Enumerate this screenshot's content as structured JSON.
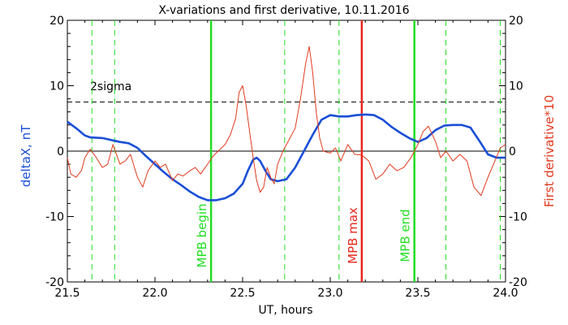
{
  "chart_data": {
    "type": "line",
    "title": "X-variations and first derivative, 10.11.2016",
    "xlabel": "UT, hours",
    "ylabel_left": "deltaX, nT",
    "ylabel_right": "First derivative*10",
    "xlim": [
      21.5,
      24.0
    ],
    "ylim": [
      -20,
      20
    ],
    "x_ticks": [
      "21.5",
      "22.0",
      "22.5",
      "23.0",
      "23.5",
      "24.0"
    ],
    "y_ticks": [
      "20",
      "10",
      "0",
      "-10",
      "-20"
    ],
    "zero_line": 0,
    "sigma_line": {
      "label": "2sigma",
      "value": 7.5
    },
    "colors": {
      "deltaX": "#1a4fd6",
      "derivative": "#e03a1e",
      "markers": "#22dd22",
      "max_marker": "#e8261c"
    },
    "dashed_markers_x": [
      21.64,
      21.77,
      22.74,
      23.05,
      23.66,
      23.97
    ],
    "events": [
      {
        "label": "MPB begin",
        "x": 22.32,
        "color": "#22dd22"
      },
      {
        "label": "MPB max",
        "x": 23.18,
        "color": "#e8261c"
      },
      {
        "label": "MPB end",
        "x": 23.48,
        "color": "#22dd22"
      }
    ],
    "series": [
      {
        "name": "deltaX, nT",
        "x": [
          21.5,
          21.55,
          21.6,
          21.63,
          21.7,
          21.75,
          21.8,
          21.85,
          21.9,
          21.95,
          22.0,
          22.05,
          22.1,
          22.15,
          22.2,
          22.25,
          22.3,
          22.35,
          22.4,
          22.45,
          22.5,
          22.53,
          22.56,
          22.58,
          22.6,
          22.63,
          22.66,
          22.7,
          22.75,
          22.8,
          22.85,
          22.9,
          22.95,
          23.0,
          23.05,
          23.1,
          23.15,
          23.2,
          23.25,
          23.3,
          23.35,
          23.4,
          23.45,
          23.5,
          23.55,
          23.6,
          23.65,
          23.7,
          23.75,
          23.8,
          23.85,
          23.9,
          23.95,
          24.0
        ],
        "values": [
          4.5,
          3.5,
          2.4,
          2.1,
          2.0,
          1.7,
          1.4,
          1.2,
          0.5,
          -0.8,
          -2.0,
          -3.2,
          -4.3,
          -5.2,
          -6.2,
          -7.0,
          -7.5,
          -7.5,
          -7.2,
          -6.5,
          -5.0,
          -3.0,
          -1.3,
          -1.0,
          -1.5,
          -3.0,
          -4.3,
          -4.6,
          -4.3,
          -2.5,
          0.0,
          2.5,
          4.8,
          5.5,
          5.3,
          5.3,
          5.5,
          5.6,
          5.5,
          4.8,
          3.7,
          2.8,
          2.0,
          1.4,
          2.0,
          3.2,
          3.9,
          4.0,
          4.0,
          3.6,
          1.6,
          -0.5,
          -1.0,
          -1.0
        ]
      },
      {
        "name": "First derivative*10",
        "x": [
          21.5,
          21.52,
          21.55,
          21.58,
          21.6,
          21.63,
          21.66,
          21.7,
          21.73,
          21.76,
          21.8,
          21.83,
          21.86,
          21.9,
          21.93,
          21.96,
          22.0,
          22.03,
          22.06,
          22.1,
          22.13,
          22.16,
          22.2,
          22.23,
          22.26,
          22.3,
          22.33,
          22.36,
          22.4,
          22.43,
          22.46,
          22.48,
          22.5,
          22.52,
          22.54,
          22.56,
          22.58,
          22.6,
          22.62,
          22.64,
          22.66,
          22.68,
          22.7,
          22.73,
          22.76,
          22.8,
          22.83,
          22.86,
          22.88,
          22.9,
          22.92,
          22.94,
          22.96,
          23.0,
          23.03,
          23.06,
          23.1,
          23.14,
          23.18,
          23.22,
          23.26,
          23.3,
          23.34,
          23.38,
          23.42,
          23.46,
          23.5,
          23.53,
          23.56,
          23.6,
          23.63,
          23.66,
          23.7,
          23.74,
          23.78,
          23.82,
          23.86,
          23.9,
          23.94,
          23.97,
          24.0
        ],
        "values": [
          -1.0,
          -3.5,
          -4.0,
          -3.0,
          -1.0,
          0.3,
          -0.8,
          -2.5,
          -2.0,
          1.0,
          -2.0,
          -1.5,
          -0.5,
          -4.0,
          -5.5,
          -3.0,
          -1.5,
          -2.5,
          -2.0,
          -4.5,
          -3.5,
          -3.8,
          -3.0,
          -2.5,
          -3.5,
          -2.0,
          -0.8,
          0.0,
          1.0,
          2.5,
          5.0,
          9.0,
          10.0,
          7.0,
          3.0,
          -1.0,
          -4.5,
          -6.3,
          -5.5,
          -2.5,
          -4.0,
          -5.0,
          -2.0,
          0.0,
          1.5,
          3.5,
          8.0,
          13.5,
          16.0,
          12.0,
          6.0,
          2.0,
          0.0,
          -0.3,
          0.5,
          -1.5,
          1.0,
          -0.5,
          -0.6,
          -1.5,
          -4.3,
          -3.5,
          -2.0,
          -3.0,
          -2.5,
          -1.0,
          1.0,
          3.0,
          3.8,
          1.5,
          -1.0,
          0.0,
          -1.5,
          -0.5,
          -1.5,
          -5.5,
          -6.8,
          -4.0,
          -1.5,
          0.5,
          1.0
        ]
      }
    ]
  }
}
